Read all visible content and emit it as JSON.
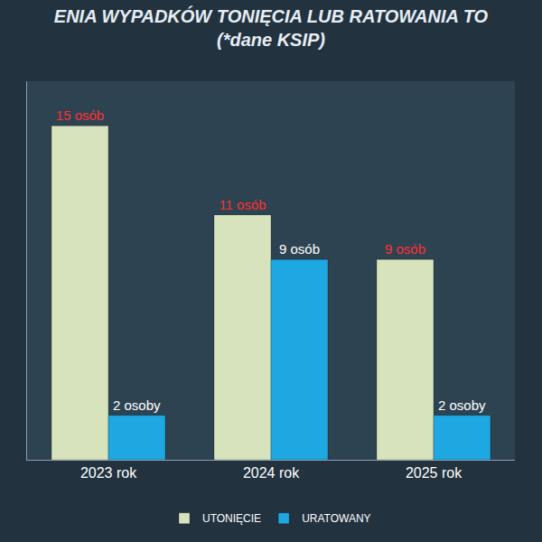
{
  "chart_data": {
    "type": "bar",
    "title": "ENIA WYPADKÓW TONIĘCIA LUB RATOWANIA TO",
    "subtitle": "(*dane KSIP)",
    "categories": [
      "2023 rok",
      "2024 rok",
      "2025 rok"
    ],
    "series": [
      {
        "name": "UTONIĘCIE",
        "color": "#d6e3bc",
        "values": [
          15,
          11,
          9
        ],
        "value_labels": [
          "15 osób",
          "11 osób",
          "9 osób"
        ]
      },
      {
        "name": "URATOWANY",
        "color": "#1ea7e1",
        "values": [
          2,
          9,
          2
        ],
        "value_labels": [
          "2 osoby",
          "9 osób",
          "2 osoby"
        ]
      }
    ],
    "ylim": [
      0,
      17
    ],
    "yticks": [],
    "data_labels": true,
    "tick_labels": "x",
    "legend": "bottom",
    "grid": false
  }
}
